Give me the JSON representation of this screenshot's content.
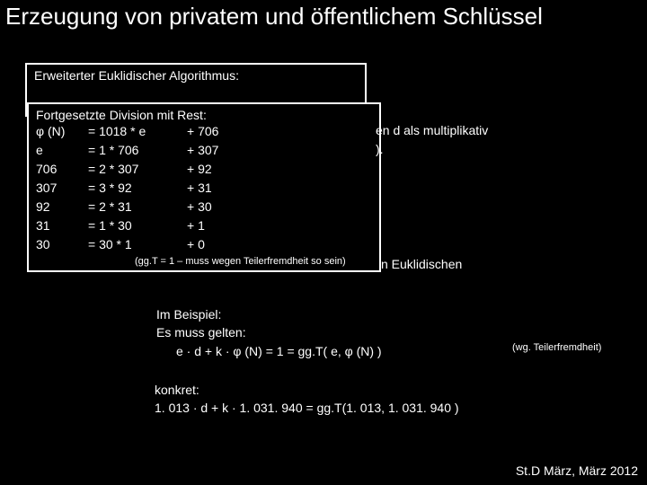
{
  "title": "Erzeugung von privatem und öffentlichem Schlüssel",
  "box1_label": "Erweiterter Euklidischer Algorithmus:",
  "box2_heading": "Fortgesetzte Division mit Rest:",
  "division_rows": [
    {
      "a": "φ (N)",
      "b": "= 1018 * e",
      "c": "+ 706"
    },
    {
      "a": "e",
      "b": "= 1 * 706",
      "c": "+ 307"
    },
    {
      "a": "706",
      "b": "= 2 * 307",
      "c": "+ 92"
    },
    {
      "a": "307",
      "b": "= 3 * 92",
      "c": "+ 31"
    },
    {
      "a": "92",
      "b": "= 2 * 31",
      "c": "+ 30"
    },
    {
      "a": "31",
      "b": "= 1 * 30",
      "c": "+ 1"
    },
    {
      "a": "30",
      "b": "= 30 * 1",
      "c": "+ 0"
    }
  ],
  "ggt_note": "(gg.T = 1  –  muss wegen Teilerfremdheit so sein)",
  "right_lines": [
    "en d als multiplikativ",
    ")."
  ],
  "euclid_tail": "n Euklidischen",
  "beispiel": {
    "l1": "Im Beispiel:",
    "l2": "Es muss gelten:",
    "l3": "   e · d  + k · φ (N)  = 1 = gg.T( e, φ (N)  )",
    "note": "(wg. Teilerfremdheit)"
  },
  "konkret": {
    "l1": "konkret:",
    "l2": " 1. 013 · d + k · 1. 031. 940 = gg.T(1. 013, 1. 031. 940 )"
  },
  "footer": "St.D März, März 2012",
  "colors": {
    "bg": "#000000",
    "fg": "#ffffff"
  },
  "fontsize": {
    "title": 26,
    "body": 14,
    "small": 11
  }
}
